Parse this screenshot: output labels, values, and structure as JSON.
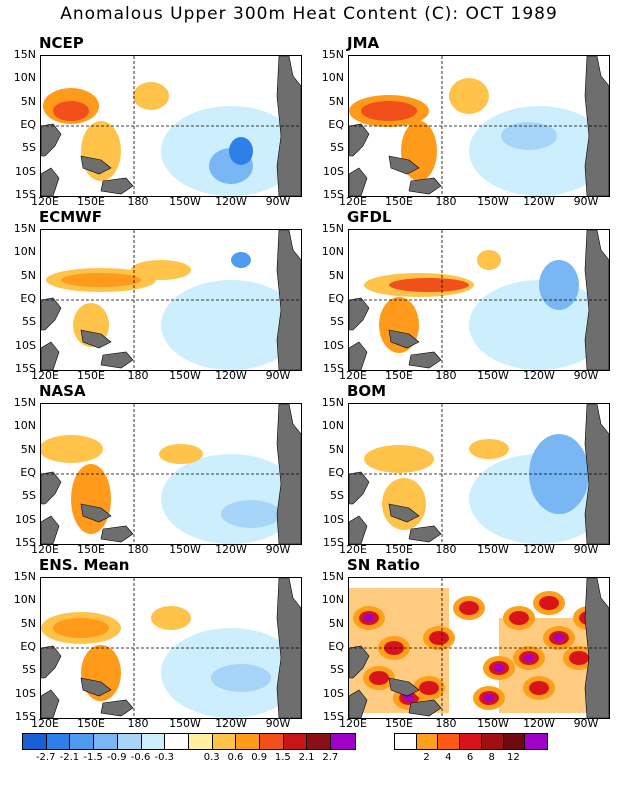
{
  "title": "Anomalous Upper 300m Heat Content (C): OCT 1989",
  "y_ticks": [
    "15N",
    "10N",
    "5N",
    "EQ",
    "5S",
    "10S",
    "15S"
  ],
  "x_ticks": [
    "120E",
    "150E",
    "180",
    "150W",
    "120W",
    "90W"
  ],
  "panels": [
    {
      "name": "NCEP"
    },
    {
      "name": "JMA"
    },
    {
      "name": "ECMWF"
    },
    {
      "name": "GFDL"
    },
    {
      "name": "NASA"
    },
    {
      "name": "BOM"
    },
    {
      "name": "ENS. Mean"
    },
    {
      "name": "SN Ratio"
    }
  ],
  "anomaly_colorbar": {
    "colors": [
      "#1a5fd6",
      "#2f7fe8",
      "#4f9bef",
      "#78b6f4",
      "#a7d5fa",
      "#cdeefc",
      "#ffffff",
      "#fff0a0",
      "#ffc34a",
      "#ff9a1a",
      "#f2501a",
      "#c8141a",
      "#8a0f16",
      "#a000c8"
    ],
    "labels": [
      "-2.7",
      "-2.1",
      "-1.5",
      "-0.9",
      "-0.6",
      "-0.3",
      "0.3",
      "0.6",
      "0.9",
      "1.5",
      "2.1",
      "2.7"
    ]
  },
  "sn_colorbar": {
    "colors": [
      "#ffffff",
      "#ffa01a",
      "#ff5a14",
      "#d8141a",
      "#a00f12",
      "#6e0a10",
      "#a000c8"
    ],
    "labels": [
      "2",
      "4",
      "6",
      "8",
      "12"
    ]
  }
}
